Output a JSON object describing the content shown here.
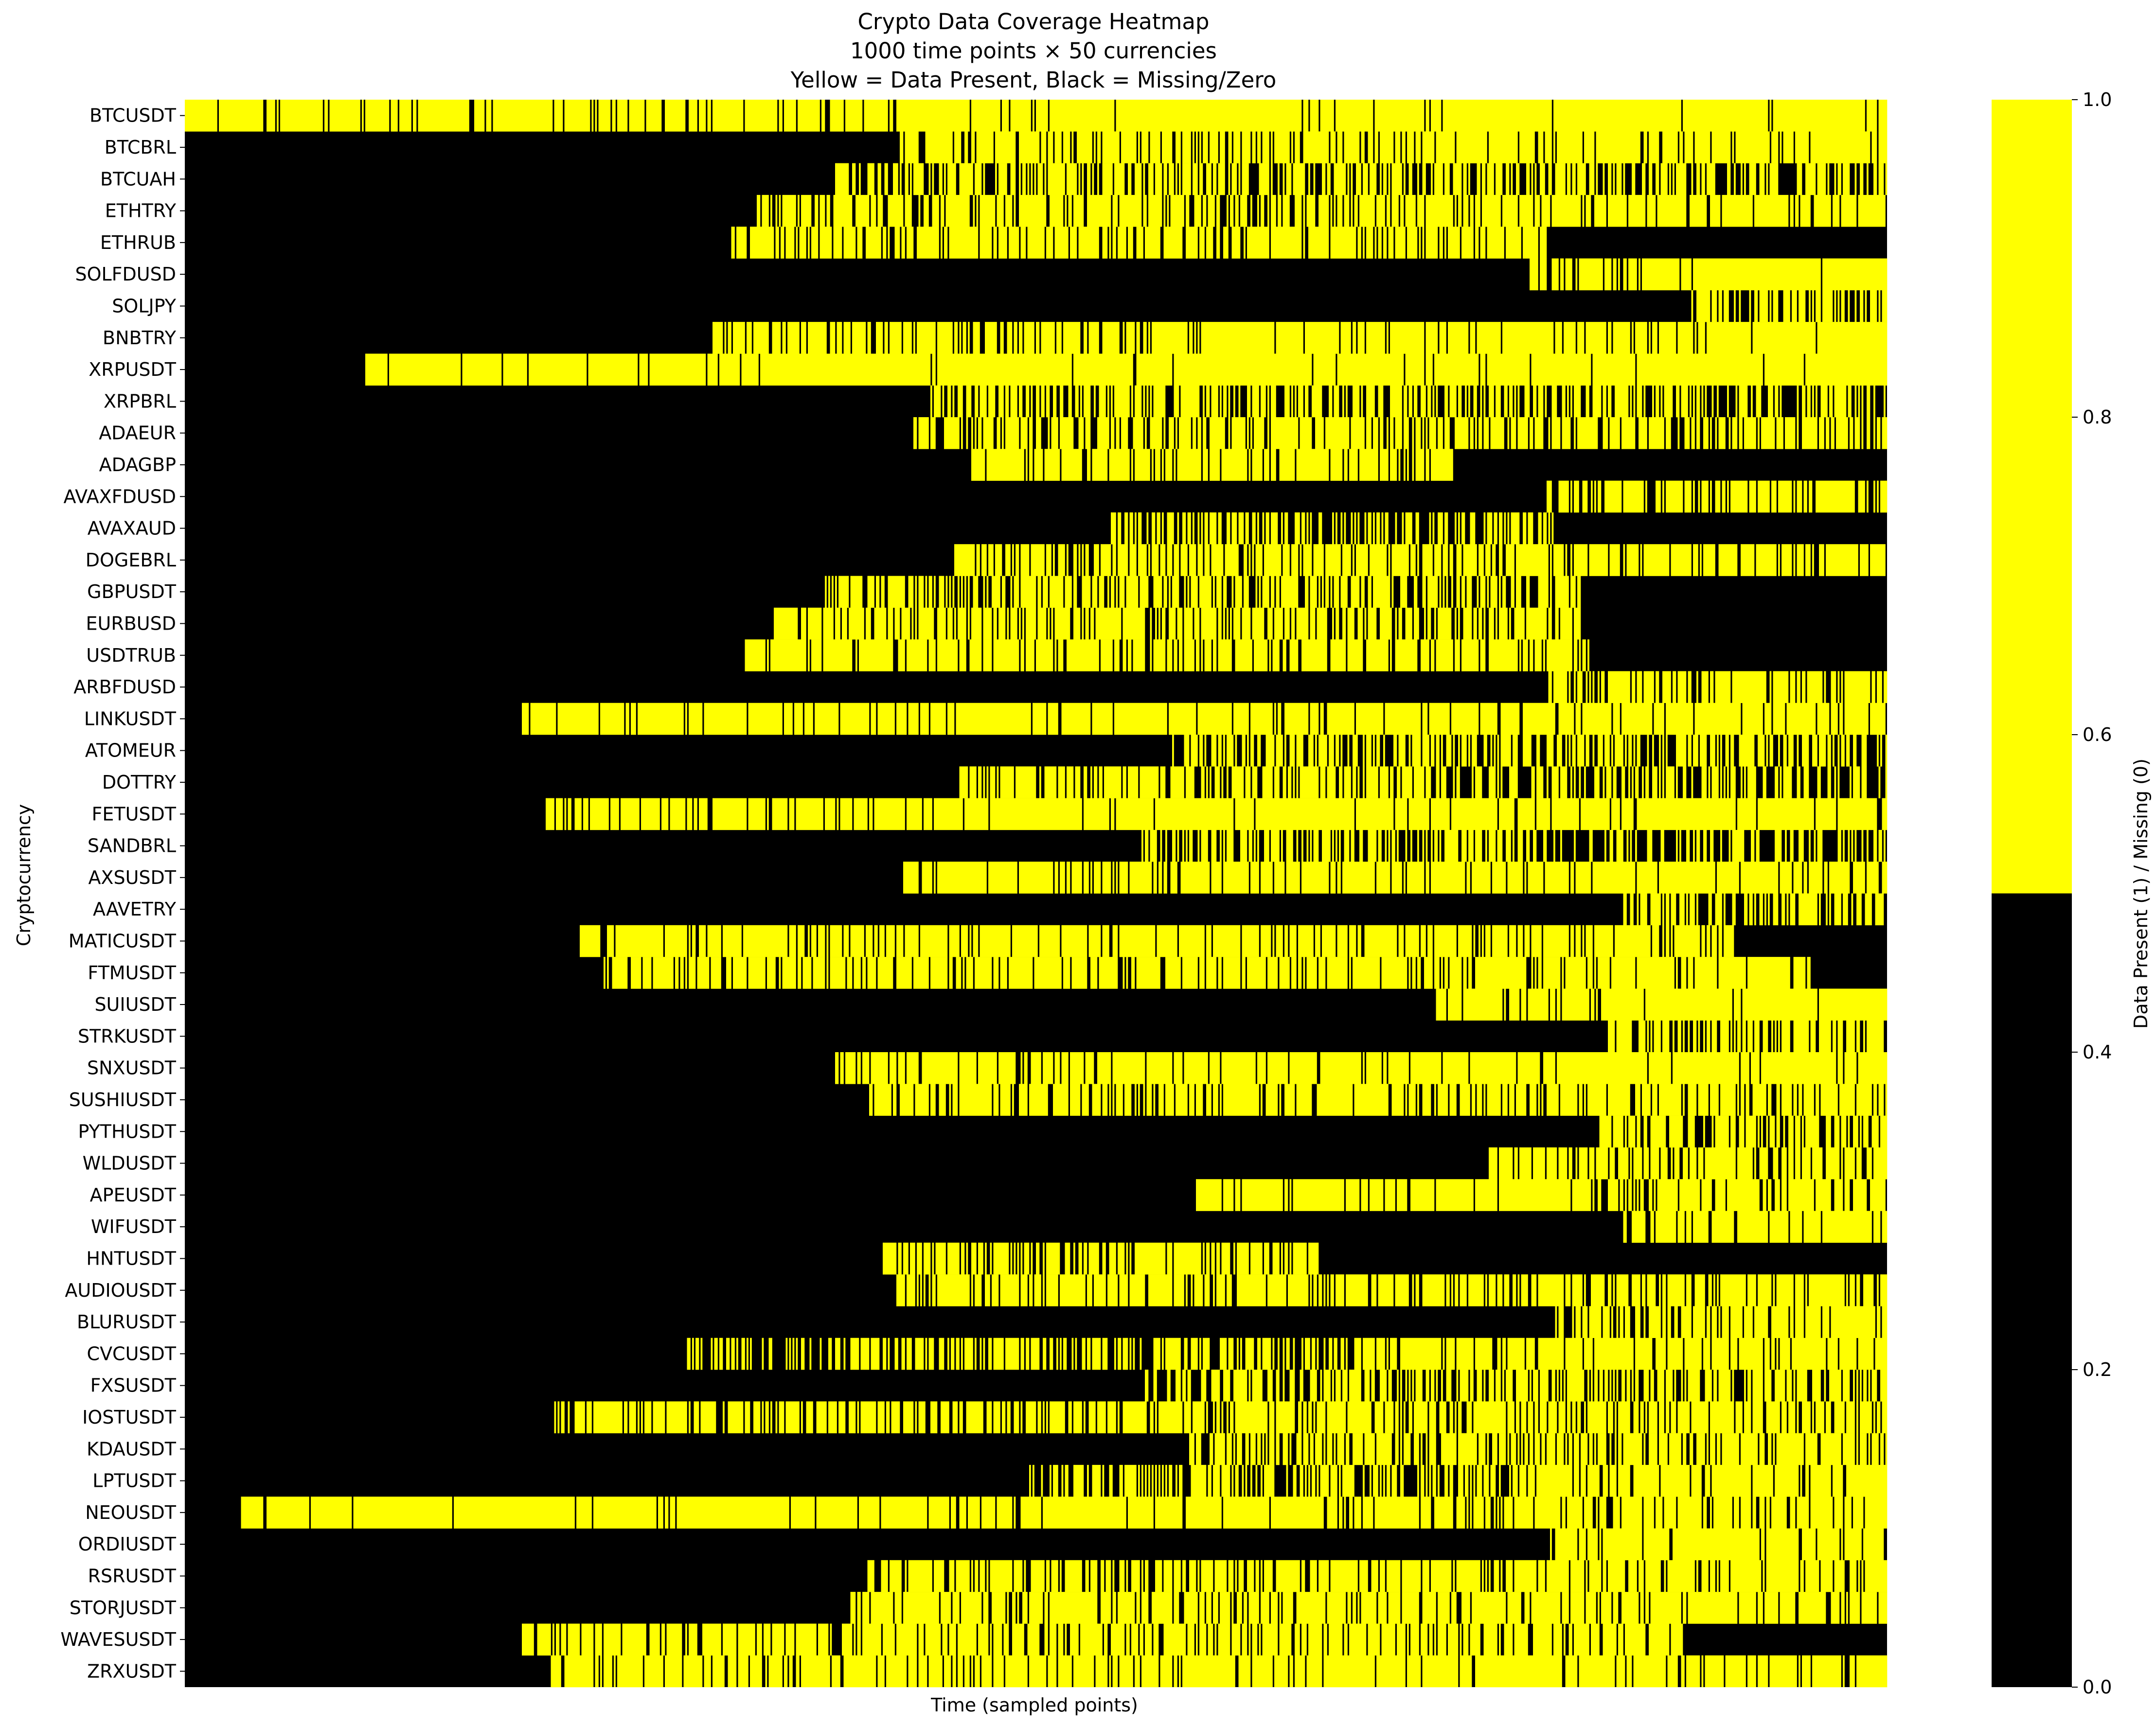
{
  "chart_data": {
    "type": "heatmap",
    "title": "Crypto Data Coverage Heatmap",
    "subtitle_lines": [
      "1000 time points × 50 currencies",
      "Yellow = Data Present, Black = Missing/Zero"
    ],
    "xlabel": "Time (sampled points)",
    "ylabel": "Cryptocurrency",
    "colorbar_label": "Data Present (1) / Missing (0)",
    "colorbar_ticks": [
      "0.0",
      "0.2",
      "0.4",
      "0.6",
      "0.8",
      "1.0"
    ],
    "colorbar_range": [
      0,
      1
    ],
    "colormap": {
      "present": "#ffff00",
      "missing": "#000000"
    },
    "n_time_points": 1000,
    "rows": [
      {
        "name": "BTCUSDT",
        "first_present": 0,
        "density_early": 0.92,
        "density_late": 0.98,
        "split": 500
      },
      {
        "name": "BTCBRL",
        "first_present": 420,
        "density_early": 0.8,
        "density_late": 0.9,
        "split": 700
      },
      {
        "name": "BTCUAH",
        "first_present": 380,
        "density_early": 0.65,
        "density_late": 0.55,
        "split": 750
      },
      {
        "name": "ETHTRY",
        "first_present": 335,
        "density_early": 0.7,
        "density_late": 0.85,
        "split": 700
      },
      {
        "name": "ETHRUB",
        "first_present": 320,
        "density_early": 0.82,
        "density_late": 0.0,
        "split": 800
      },
      {
        "name": "SOLFDUSD",
        "first_present": 790,
        "density_early": 0.88,
        "density_late": 0.95,
        "split": 900
      },
      {
        "name": "SOLJPY",
        "first_present": 885,
        "density_early": 0.7,
        "density_late": 0.65,
        "split": 950
      },
      {
        "name": "BNBTRY",
        "first_present": 310,
        "density_early": 0.78,
        "density_late": 0.92,
        "split": 600
      },
      {
        "name": "XRPUSDT",
        "first_present": 106,
        "density_early": 0.96,
        "density_late": 0.97,
        "split": 500
      },
      {
        "name": "XRPBRL",
        "first_present": 438,
        "density_early": 0.65,
        "density_late": 0.55,
        "split": 750
      },
      {
        "name": "ADAEUR",
        "first_present": 428,
        "density_early": 0.75,
        "density_late": 0.7,
        "split": 750
      },
      {
        "name": "ADAGBP",
        "first_present": 462,
        "density_early": 0.85,
        "density_late": 0.0,
        "split": 745
      },
      {
        "name": "AVAXFDUSD",
        "first_present": 800,
        "density_early": 0.75,
        "density_late": 0.8,
        "split": 900
      },
      {
        "name": "AVAXAUD",
        "first_present": 542,
        "density_early": 0.55,
        "density_late": 0.0,
        "split": 805
      },
      {
        "name": "DOGEBRL",
        "first_present": 452,
        "density_early": 0.75,
        "density_late": 0.85,
        "split": 750
      },
      {
        "name": "GBPUSDT",
        "first_present": 375,
        "density_early": 0.7,
        "density_late": 0.0,
        "split": 820
      },
      {
        "name": "EURBUSD",
        "first_present": 345,
        "density_early": 0.75,
        "density_late": 0.0,
        "split": 820
      },
      {
        "name": "USDTRUB",
        "first_present": 328,
        "density_early": 0.8,
        "density_late": 0.0,
        "split": 825
      },
      {
        "name": "ARBFDUSD",
        "first_present": 800,
        "density_early": 0.7,
        "density_late": 0.8,
        "split": 900
      },
      {
        "name": "LINKUSDT",
        "first_present": 198,
        "density_early": 0.93,
        "density_late": 0.92,
        "split": 500
      },
      {
        "name": "ATOMEUR",
        "first_present": 580,
        "density_early": 0.6,
        "density_late": 0.55,
        "split": 800
      },
      {
        "name": "DOTTRY",
        "first_present": 455,
        "density_early": 0.7,
        "density_late": 0.55,
        "split": 750
      },
      {
        "name": "FETUSDT",
        "first_present": 212,
        "density_early": 0.85,
        "density_late": 0.95,
        "split": 450
      },
      {
        "name": "SANDBRL",
        "first_present": 562,
        "density_early": 0.55,
        "density_late": 0.4,
        "split": 800
      },
      {
        "name": "AXSUSDT",
        "first_present": 422,
        "density_early": 0.88,
        "density_late": 0.92,
        "split": 700
      },
      {
        "name": "AAVETRY",
        "first_present": 845,
        "density_early": 0.55,
        "density_late": 0.55,
        "split": 950
      },
      {
        "name": "MATICUSDT",
        "first_present": 232,
        "density_early": 0.85,
        "density_late": 0.0,
        "split": 910
      },
      {
        "name": "FTMUSDT",
        "first_present": 246,
        "density_early": 0.85,
        "density_late": 0.0,
        "split": 955
      },
      {
        "name": "SUIUSDT",
        "first_present": 735,
        "density_early": 0.9,
        "density_late": 0.97,
        "split": 850
      },
      {
        "name": "STRKUSDT",
        "first_present": 835,
        "density_early": 0.7,
        "density_late": 0.7,
        "split": 900
      },
      {
        "name": "SNXUSDT",
        "first_present": 382,
        "density_early": 0.82,
        "density_late": 0.92,
        "split": 650
      },
      {
        "name": "SUSHIUSDT",
        "first_present": 400,
        "density_early": 0.8,
        "density_late": 0.75,
        "split": 700
      },
      {
        "name": "PYTHUSDT",
        "first_present": 830,
        "density_early": 0.7,
        "density_late": 0.72,
        "split": 900
      },
      {
        "name": "WLDUSDT",
        "first_present": 765,
        "density_early": 0.75,
        "density_late": 0.8,
        "split": 880
      },
      {
        "name": "APEUSDT",
        "first_present": 594,
        "density_early": 0.92,
        "density_late": 0.8,
        "split": 820
      },
      {
        "name": "WIFUSDT",
        "first_present": 845,
        "density_early": 0.85,
        "density_late": 0.9,
        "split": 920
      },
      {
        "name": "HNTUSDT",
        "first_present": 410,
        "density_early": 0.75,
        "density_late": 0.0,
        "split": 667
      },
      {
        "name": "AUDIOUSDT",
        "first_present": 418,
        "density_early": 0.8,
        "density_late": 0.8,
        "split": 700
      },
      {
        "name": "BLURUSDT",
        "first_present": 805,
        "density_early": 0.75,
        "density_late": 0.85,
        "split": 900
      },
      {
        "name": "CVCUSDT",
        "first_present": 295,
        "density_early": 0.55,
        "density_late": 0.9,
        "split": 700
      },
      {
        "name": "FXSUSDT",
        "first_present": 564,
        "density_early": 0.6,
        "density_late": 0.7,
        "split": 750
      },
      {
        "name": "IOSTUSDT",
        "first_present": 217,
        "density_early": 0.78,
        "density_late": 0.8,
        "split": 550
      },
      {
        "name": "KDAUSDT",
        "first_present": 590,
        "density_early": 0.7,
        "density_late": 0.85,
        "split": 850
      },
      {
        "name": "LPTUSDT",
        "first_present": 495,
        "density_early": 0.55,
        "density_late": 0.85,
        "split": 780
      },
      {
        "name": "NEOUSDT",
        "first_present": 33,
        "density_early": 0.95,
        "density_late": 0.8,
        "split": 650
      },
      {
        "name": "ORDIUSDT",
        "first_present": 802,
        "density_early": 0.9,
        "density_late": 0.92,
        "split": 900
      },
      {
        "name": "RSRUSDT",
        "first_present": 400,
        "density_early": 0.8,
        "density_late": 0.85,
        "split": 700
      },
      {
        "name": "STORJUSDT",
        "first_present": 390,
        "density_early": 0.85,
        "density_late": 0.85,
        "split": 700
      },
      {
        "name": "WAVESUSDT",
        "first_present": 198,
        "density_early": 0.82,
        "density_late": 0.0,
        "split": 880
      },
      {
        "name": "ZRXUSDT",
        "first_present": 215,
        "density_early": 0.85,
        "density_late": 0.92,
        "split": 600
      }
    ]
  }
}
